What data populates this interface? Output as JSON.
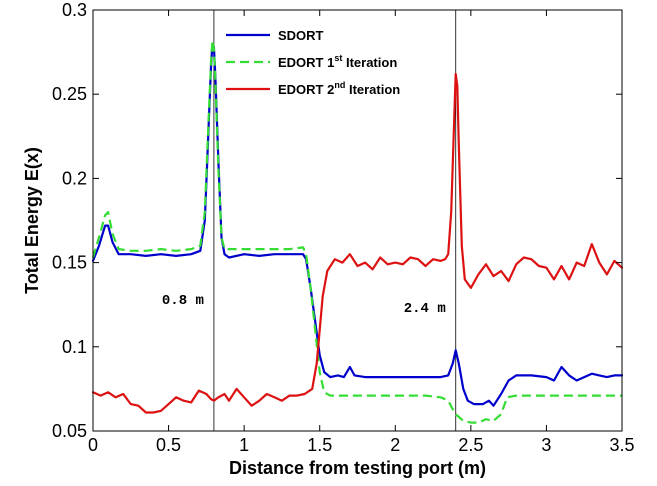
{
  "chart_data": {
    "type": "line",
    "title": "",
    "xlabel": "Distance from testing port (m)",
    "ylabel": "Total Energy E(x)",
    "xlim": [
      0,
      3.5
    ],
    "ylim": [
      0.05,
      0.3
    ],
    "xticks": [
      "0",
      "0.5",
      "1",
      "1.5",
      "2",
      "2.5",
      "3",
      "3.5"
    ],
    "yticks": [
      "0.05",
      "0.1",
      "0.15",
      "0.2",
      "0.25",
      "0.3"
    ],
    "grid": false,
    "legend_position": "top-center",
    "annotations": [
      {
        "text": "0.8 m",
        "x": 0.8
      },
      {
        "text": "2.4 m",
        "x": 2.4
      }
    ],
    "series": [
      {
        "name": "SDORT",
        "legend_main": "SDORT",
        "legend_sup": "",
        "legend_tail": "",
        "color": "#0000cc",
        "dash": "none",
        "points": [
          [
            0.0,
            0.151
          ],
          [
            0.04,
            0.16
          ],
          [
            0.08,
            0.172
          ],
          [
            0.1,
            0.172
          ],
          [
            0.13,
            0.162
          ],
          [
            0.17,
            0.155
          ],
          [
            0.25,
            0.155
          ],
          [
            0.35,
            0.154
          ],
          [
            0.45,
            0.155
          ],
          [
            0.55,
            0.154
          ],
          [
            0.65,
            0.155
          ],
          [
            0.71,
            0.157
          ],
          [
            0.74,
            0.175
          ],
          [
            0.76,
            0.22
          ],
          [
            0.78,
            0.265
          ],
          [
            0.79,
            0.28
          ],
          [
            0.8,
            0.278
          ],
          [
            0.81,
            0.26
          ],
          [
            0.83,
            0.21
          ],
          [
            0.85,
            0.165
          ],
          [
            0.87,
            0.155
          ],
          [
            0.9,
            0.153
          ],
          [
            1.0,
            0.155
          ],
          [
            1.1,
            0.154
          ],
          [
            1.2,
            0.155
          ],
          [
            1.3,
            0.155
          ],
          [
            1.39,
            0.155
          ],
          [
            1.41,
            0.152
          ],
          [
            1.44,
            0.135
          ],
          [
            1.47,
            0.115
          ],
          [
            1.5,
            0.095
          ],
          [
            1.53,
            0.085
          ],
          [
            1.57,
            0.082
          ],
          [
            1.62,
            0.083
          ],
          [
            1.66,
            0.082
          ],
          [
            1.7,
            0.088
          ],
          [
            1.73,
            0.083
          ],
          [
            1.8,
            0.082
          ],
          [
            1.9,
            0.082
          ],
          [
            2.0,
            0.082
          ],
          [
            2.1,
            0.082
          ],
          [
            2.2,
            0.082
          ],
          [
            2.3,
            0.082
          ],
          [
            2.35,
            0.083
          ],
          [
            2.38,
            0.09
          ],
          [
            2.4,
            0.098
          ],
          [
            2.42,
            0.09
          ],
          [
            2.45,
            0.075
          ],
          [
            2.48,
            0.068
          ],
          [
            2.52,
            0.066
          ],
          [
            2.58,
            0.066
          ],
          [
            2.62,
            0.068
          ],
          [
            2.65,
            0.065
          ],
          [
            2.7,
            0.072
          ],
          [
            2.75,
            0.08
          ],
          [
            2.8,
            0.083
          ],
          [
            2.9,
            0.083
          ],
          [
            3.0,
            0.082
          ],
          [
            3.05,
            0.08
          ],
          [
            3.1,
            0.088
          ],
          [
            3.15,
            0.083
          ],
          [
            3.2,
            0.08
          ],
          [
            3.25,
            0.082
          ],
          [
            3.3,
            0.084
          ],
          [
            3.35,
            0.083
          ],
          [
            3.4,
            0.082
          ],
          [
            3.45,
            0.083
          ],
          [
            3.5,
            0.083
          ]
        ]
      },
      {
        "name": "EDORT 1st Iteration",
        "legend_main": "EDORT 1",
        "legend_sup": "st",
        "legend_tail": " Iteration",
        "color": "#33dd33",
        "dash": "9,5",
        "points": [
          [
            0.0,
            0.153
          ],
          [
            0.04,
            0.165
          ],
          [
            0.08,
            0.178
          ],
          [
            0.1,
            0.18
          ],
          [
            0.13,
            0.167
          ],
          [
            0.17,
            0.158
          ],
          [
            0.25,
            0.157
          ],
          [
            0.35,
            0.157
          ],
          [
            0.45,
            0.158
          ],
          [
            0.55,
            0.157
          ],
          [
            0.65,
            0.158
          ],
          [
            0.71,
            0.16
          ],
          [
            0.74,
            0.18
          ],
          [
            0.76,
            0.225
          ],
          [
            0.78,
            0.268
          ],
          [
            0.79,
            0.282
          ],
          [
            0.8,
            0.277
          ],
          [
            0.81,
            0.258
          ],
          [
            0.83,
            0.205
          ],
          [
            0.85,
            0.165
          ],
          [
            0.87,
            0.158
          ],
          [
            0.9,
            0.158
          ],
          [
            1.0,
            0.158
          ],
          [
            1.1,
            0.158
          ],
          [
            1.2,
            0.158
          ],
          [
            1.3,
            0.158
          ],
          [
            1.39,
            0.159
          ],
          [
            1.41,
            0.155
          ],
          [
            1.44,
            0.135
          ],
          [
            1.47,
            0.11
          ],
          [
            1.5,
            0.085
          ],
          [
            1.53,
            0.073
          ],
          [
            1.57,
            0.071
          ],
          [
            1.7,
            0.071
          ],
          [
            1.8,
            0.071
          ],
          [
            1.9,
            0.071
          ],
          [
            2.0,
            0.071
          ],
          [
            2.1,
            0.071
          ],
          [
            2.2,
            0.071
          ],
          [
            2.3,
            0.07
          ],
          [
            2.35,
            0.068
          ],
          [
            2.38,
            0.063
          ],
          [
            2.4,
            0.06
          ],
          [
            2.45,
            0.056
          ],
          [
            2.5,
            0.055
          ],
          [
            2.55,
            0.055
          ],
          [
            2.6,
            0.057
          ],
          [
            2.65,
            0.056
          ],
          [
            2.7,
            0.06
          ],
          [
            2.74,
            0.07
          ],
          [
            2.8,
            0.071
          ],
          [
            3.0,
            0.071
          ],
          [
            3.2,
            0.071
          ],
          [
            3.4,
            0.071
          ],
          [
            3.5,
            0.071
          ]
        ]
      },
      {
        "name": "EDORT 2nd Iteration",
        "legend_main": "EDORT 2",
        "legend_sup": "nd",
        "legend_tail": " Iteration",
        "color": "#dd1111",
        "dash": "none",
        "points": [
          [
            0.0,
            0.073
          ],
          [
            0.05,
            0.071
          ],
          [
            0.1,
            0.073
          ],
          [
            0.15,
            0.07
          ],
          [
            0.2,
            0.072
          ],
          [
            0.25,
            0.066
          ],
          [
            0.3,
            0.065
          ],
          [
            0.35,
            0.061
          ],
          [
            0.4,
            0.061
          ],
          [
            0.45,
            0.062
          ],
          [
            0.5,
            0.066
          ],
          [
            0.55,
            0.07
          ],
          [
            0.6,
            0.068
          ],
          [
            0.65,
            0.067
          ],
          [
            0.7,
            0.074
          ],
          [
            0.75,
            0.072
          ],
          [
            0.78,
            0.069
          ],
          [
            0.8,
            0.068
          ],
          [
            0.83,
            0.07
          ],
          [
            0.87,
            0.072
          ],
          [
            0.9,
            0.068
          ],
          [
            0.95,
            0.075
          ],
          [
            1.0,
            0.07
          ],
          [
            1.05,
            0.065
          ],
          [
            1.1,
            0.068
          ],
          [
            1.15,
            0.072
          ],
          [
            1.2,
            0.07
          ],
          [
            1.25,
            0.068
          ],
          [
            1.3,
            0.071
          ],
          [
            1.35,
            0.071
          ],
          [
            1.4,
            0.072
          ],
          [
            1.45,
            0.075
          ],
          [
            1.48,
            0.09
          ],
          [
            1.5,
            0.11
          ],
          [
            1.52,
            0.13
          ],
          [
            1.55,
            0.145
          ],
          [
            1.6,
            0.152
          ],
          [
            1.65,
            0.15
          ],
          [
            1.7,
            0.155
          ],
          [
            1.75,
            0.148
          ],
          [
            1.8,
            0.15
          ],
          [
            1.85,
            0.146
          ],
          [
            1.9,
            0.153
          ],
          [
            1.95,
            0.149
          ],
          [
            2.0,
            0.15
          ],
          [
            2.05,
            0.149
          ],
          [
            2.1,
            0.153
          ],
          [
            2.15,
            0.152
          ],
          [
            2.2,
            0.148
          ],
          [
            2.25,
            0.152
          ],
          [
            2.3,
            0.151
          ],
          [
            2.33,
            0.152
          ],
          [
            2.35,
            0.155
          ],
          [
            2.37,
            0.18
          ],
          [
            2.39,
            0.235
          ],
          [
            2.4,
            0.262
          ],
          [
            2.41,
            0.255
          ],
          [
            2.42,
            0.22
          ],
          [
            2.44,
            0.16
          ],
          [
            2.46,
            0.14
          ],
          [
            2.5,
            0.135
          ],
          [
            2.55,
            0.143
          ],
          [
            2.6,
            0.149
          ],
          [
            2.65,
            0.142
          ],
          [
            2.7,
            0.145
          ],
          [
            2.75,
            0.139
          ],
          [
            2.8,
            0.149
          ],
          [
            2.85,
            0.153
          ],
          [
            2.9,
            0.152
          ],
          [
            2.95,
            0.148
          ],
          [
            3.0,
            0.147
          ],
          [
            3.05,
            0.14
          ],
          [
            3.1,
            0.148
          ],
          [
            3.15,
            0.14
          ],
          [
            3.2,
            0.15
          ],
          [
            3.25,
            0.148
          ],
          [
            3.3,
            0.161
          ],
          [
            3.35,
            0.15
          ],
          [
            3.4,
            0.143
          ],
          [
            3.45,
            0.151
          ],
          [
            3.5,
            0.147
          ]
        ]
      }
    ]
  }
}
